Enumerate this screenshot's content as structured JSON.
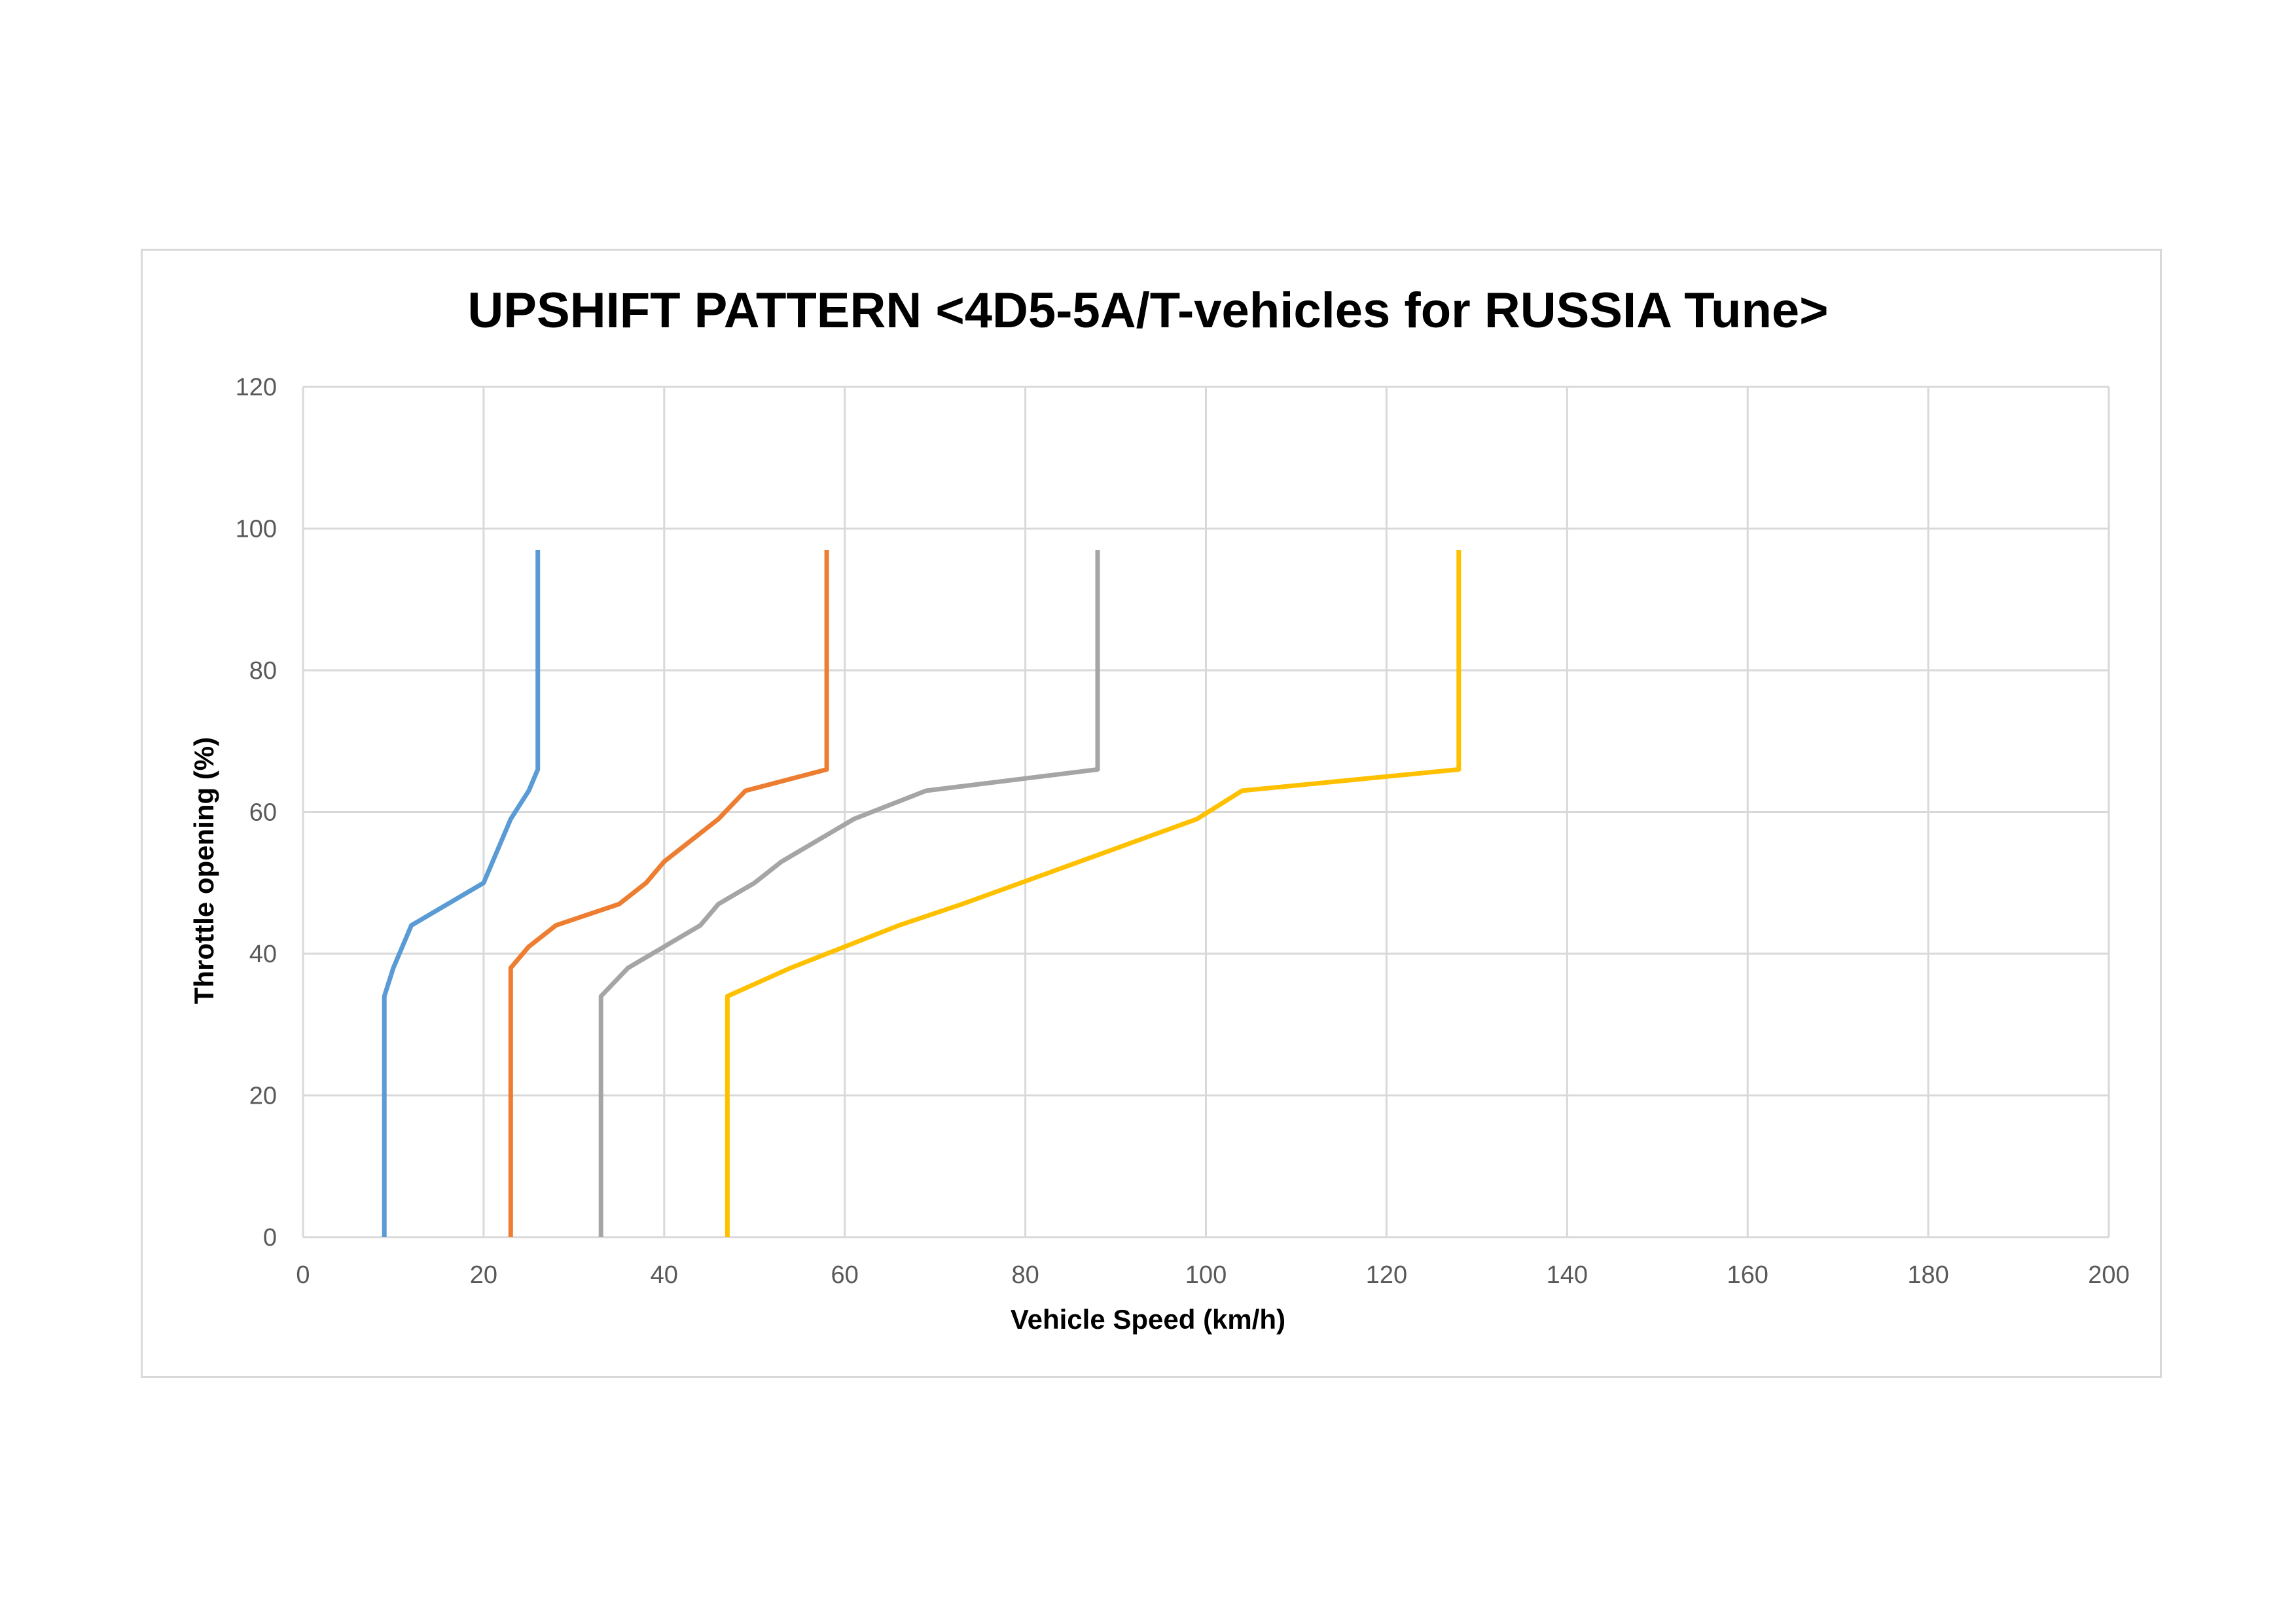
{
  "chart_data": {
    "type": "line",
    "title": "UPSHIFT PATTERN <4D5-5A/T-vehicles for RUSSIA Tune>",
    "xlabel": "Vehicle Speed (km/h)",
    "ylabel": "Throttle opening (%)",
    "xlim": [
      0,
      200
    ],
    "ylim": [
      0,
      120
    ],
    "x_ticks": [
      "0",
      "20",
      "40",
      "60",
      "80",
      "100",
      "120",
      "140",
      "160",
      "180",
      "200"
    ],
    "y_ticks": [
      "0",
      "20",
      "40",
      "60",
      "80",
      "100",
      "120"
    ],
    "grid": "on",
    "legend": "none",
    "series": [
      {
        "color": "#5b9bd5",
        "points": [
          [
            9,
            0
          ],
          [
            9,
            34
          ],
          [
            10,
            38
          ],
          [
            12,
            44
          ],
          [
            20,
            50
          ],
          [
            23,
            59
          ],
          [
            25,
            63
          ],
          [
            26,
            66
          ],
          [
            26,
            97
          ]
        ]
      },
      {
        "color": "#ed7d31",
        "points": [
          [
            23,
            0
          ],
          [
            23,
            38
          ],
          [
            25,
            41
          ],
          [
            28,
            44
          ],
          [
            35,
            47
          ],
          [
            38,
            50
          ],
          [
            40,
            53
          ],
          [
            43,
            56
          ],
          [
            46,
            59
          ],
          [
            49,
            63
          ],
          [
            58,
            66
          ],
          [
            58,
            97
          ]
        ]
      },
      {
        "color": "#a5a5a5",
        "points": [
          [
            33,
            0
          ],
          [
            33,
            34
          ],
          [
            36,
            38
          ],
          [
            44,
            44
          ],
          [
            46,
            47
          ],
          [
            50,
            50
          ],
          [
            53,
            53
          ],
          [
            61,
            59
          ],
          [
            69,
            63
          ],
          [
            88,
            66
          ],
          [
            88,
            97
          ]
        ]
      },
      {
        "color": "#ffc000",
        "points": [
          [
            47,
            0
          ],
          [
            47,
            34
          ],
          [
            54,
            38
          ],
          [
            66,
            44
          ],
          [
            73,
            47
          ],
          [
            86,
            53
          ],
          [
            99,
            59
          ],
          [
            104,
            63
          ],
          [
            128,
            66
          ],
          [
            128,
            97
          ]
        ]
      }
    ]
  }
}
